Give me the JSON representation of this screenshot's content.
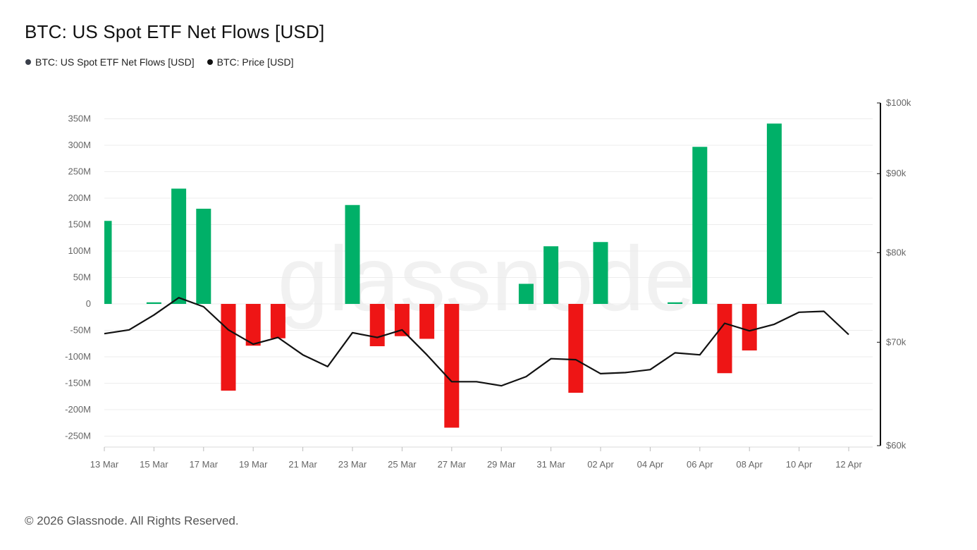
{
  "title": "BTC: US Spot ETF Net Flows [USD]",
  "legend": [
    {
      "label": "BTC: US Spot ETF Net Flows [USD]",
      "color": "#3a3f4a"
    },
    {
      "label": "BTC: Price [USD]",
      "color": "#111111"
    }
  ],
  "watermark": "glassnode",
  "footer": "© 2026 Glassnode. All Rights Reserved.",
  "colors": {
    "positive": "#00b068",
    "negative": "#ee1515",
    "price_line": "#111111",
    "grid": "#ececec"
  },
  "chart_data": {
    "type": "bar",
    "x": [
      "13 Mar",
      "14 Mar",
      "15 Mar",
      "16 Mar",
      "17 Mar",
      "18 Mar",
      "19 Mar",
      "20 Mar",
      "21 Mar",
      "22 Mar",
      "23 Mar",
      "24 Mar",
      "25 Mar",
      "26 Mar",
      "27 Mar",
      "28 Mar",
      "29 Mar",
      "30 Mar",
      "31 Mar",
      "01 Apr",
      "02 Apr",
      "03 Apr",
      "04 Apr",
      "05 Apr",
      "06 Apr",
      "07 Apr",
      "08 Apr",
      "09 Apr",
      "10 Apr",
      "11 Apr",
      "12 Apr"
    ],
    "x_tick_labels": [
      "13 Mar",
      "15 Mar",
      "17 Mar",
      "19 Mar",
      "21 Mar",
      "23 Mar",
      "25 Mar",
      "27 Mar",
      "29 Mar",
      "31 Mar",
      "02 Apr",
      "04 Apr",
      "06 Apr",
      "08 Apr",
      "10 Apr",
      "12 Apr"
    ],
    "series": [
      {
        "name": "BTC: US Spot ETF Net Flows [USD]",
        "axis": "left",
        "type": "bar",
        "values": [
          157,
          0,
          3,
          218,
          180,
          -164,
          -79,
          -65,
          0,
          0,
          187,
          -80,
          -61,
          -66,
          -234,
          0,
          0,
          38,
          109,
          -168,
          117,
          0,
          0,
          3,
          297,
          -131,
          -88,
          341,
          0,
          0,
          0
        ]
      },
      {
        "name": "BTC: Price [USD]",
        "axis": "right",
        "type": "line",
        "values": [
          70900,
          71300,
          72900,
          74800,
          73800,
          71300,
          69800,
          70500,
          68700,
          67500,
          71000,
          70500,
          71300,
          68700,
          66000,
          66000,
          65600,
          66500,
          68300,
          68200,
          66800,
          66900,
          67200,
          68900,
          68700,
          72000,
          71200,
          71900,
          73200,
          73300,
          70800
        ]
      }
    ],
    "y_left": {
      "ticks": [
        "350M",
        "300M",
        "250M",
        "200M",
        "150M",
        "100M",
        "50M",
        "0",
        "-50M",
        "-100M",
        "-150M",
        "-200M",
        "-250M"
      ],
      "min": -270,
      "max": 350
    },
    "y_right": {
      "ticks": [
        "$100k",
        "$90k",
        "$80k",
        "$70k",
        "$60k"
      ],
      "min": 60000,
      "max": 100000,
      "scale": "log"
    },
    "grid": true,
    "legend_position": "top-left"
  }
}
